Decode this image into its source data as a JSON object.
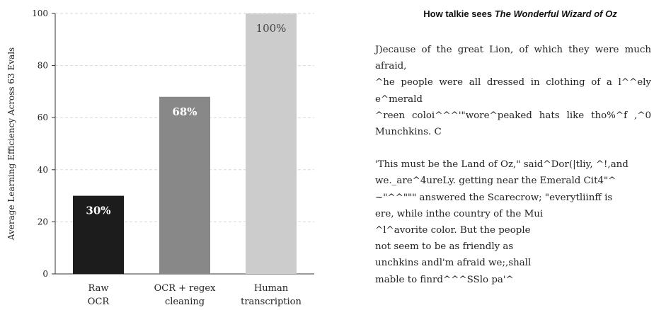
{
  "chart_data": {
    "type": "bar",
    "categories": [
      [
        "Raw",
        "OCR"
      ],
      [
        "OCR + regex",
        "cleaning"
      ],
      [
        "Human",
        "transcription"
      ]
    ],
    "values": [
      30,
      68,
      100
    ],
    "value_labels": [
      "30%",
      "68%",
      "100%"
    ],
    "colors": [
      "#1c1c1c",
      "#888888",
      "#cccccc"
    ],
    "label_colors": [
      "#ffffff",
      "#ffffff",
      "#444444"
    ],
    "ylabel": "Average Learning Efficiency Across 63 Evals",
    "ylim": [
      0,
      100
    ],
    "yticks": [
      0,
      20,
      40,
      60,
      80,
      100
    ],
    "grid": "horizontal dashed"
  },
  "panel": {
    "title_prefix": "How talkie sees ",
    "title_book": "The Wonderful Wizard of Oz",
    "paragraph_1": [
      "J)ecause of the great Lion, of which they were much",
      "afraid,",
      "^he people were all dressed in clothing of a l^^ely",
      "e^merald",
      "^reen coloi^^^'\"wore^peaked hats like tho%^f ,^0",
      "Munchkins. C"
    ],
    "paragraph_2": [
      "'This must be the Land of Oz,\" said^Dor(|tliy, ^!,and",
      "we._are^4ureLy. getting near the Emerald Cit4\"^",
      "~\"^^\"\"\" answered the Scarecrow; \"everytliinff is",
      "ere, while inthe country of the Mui",
      "^l^avorite color.  But the people",
      "not seem to be as friendly as",
      "unchkins andl'm afraid we;,shall",
      "mable to finrd^^^SSlo pa'^"
    ]
  }
}
